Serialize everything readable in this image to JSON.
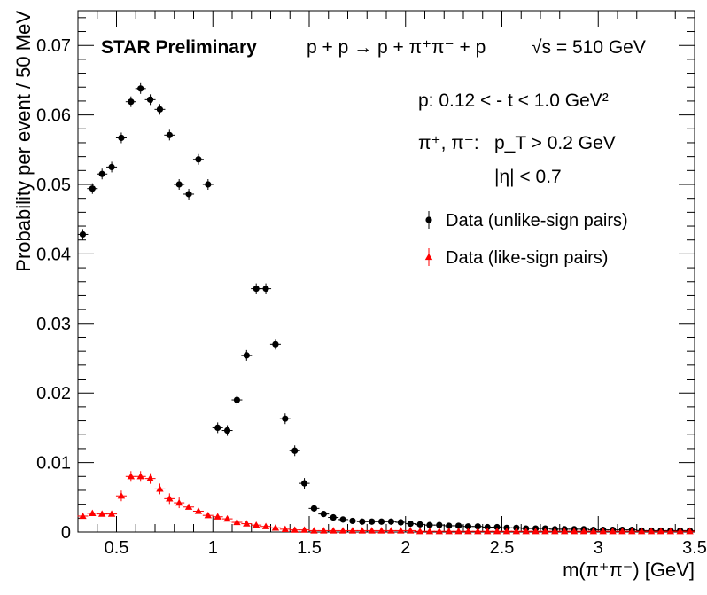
{
  "chart_data": {
    "type": "scatter",
    "title": "",
    "xlabel": "m(π⁺π⁻) [GeV]",
    "ylabel": "Probability per event / 50 MeV",
    "xlim": [
      0.3,
      3.5
    ],
    "ylim": [
      0,
      0.075
    ],
    "grid": false,
    "x_ticks": [
      0.5,
      1,
      1.5,
      2,
      2.5,
      3,
      3.5
    ],
    "x_tick_labels": [
      "0.5",
      "1",
      "1.5",
      "2",
      "2.5",
      "3",
      "3.5"
    ],
    "y_ticks": [
      0,
      0.01,
      0.02,
      0.03,
      0.04,
      0.05,
      0.06,
      0.07
    ],
    "y_tick_labels": [
      "0",
      "0.01",
      "0.02",
      "0.03",
      "0.04",
      "0.05",
      "0.06",
      "0.07"
    ],
    "annotations": {
      "experiment": "STAR Preliminary",
      "reaction": "p + p → p + π⁺π⁻ + p",
      "energy": "√s = 510 GeV",
      "proton_cut": "p:   0.12 < - t < 1.0 GeV²",
      "pion_label": "π⁺, π⁻:",
      "pt_cut": "p_T > 0.2 GeV",
      "eta_cut": "|η| < 0.7"
    },
    "legend_position": "top-right",
    "series": [
      {
        "name": "Data (unlike-sign pairs)",
        "color": "#000000",
        "marker": "circle",
        "x": [
          0.325,
          0.375,
          0.425,
          0.475,
          0.525,
          0.575,
          0.625,
          0.675,
          0.725,
          0.775,
          0.825,
          0.875,
          0.925,
          0.975,
          1.025,
          1.075,
          1.125,
          1.175,
          1.225,
          1.275,
          1.325,
          1.375,
          1.425,
          1.475,
          1.525,
          1.575,
          1.625,
          1.675,
          1.725,
          1.775,
          1.825,
          1.875,
          1.925,
          1.975,
          2.025,
          2.075,
          2.125,
          2.175,
          2.225,
          2.275,
          2.325,
          2.375,
          2.425,
          2.475,
          2.525,
          2.575,
          2.625,
          2.675,
          2.725,
          2.775,
          2.825,
          2.875,
          2.925,
          2.975,
          3.025,
          3.075,
          3.125,
          3.175,
          3.225,
          3.275,
          3.325,
          3.375,
          3.425,
          3.475
        ],
        "y": [
          0.0428,
          0.0494,
          0.0515,
          0.0525,
          0.0567,
          0.0619,
          0.0638,
          0.0622,
          0.0608,
          0.0571,
          0.05,
          0.0486,
          0.0536,
          0.05,
          0.015,
          0.0146,
          0.019,
          0.0254,
          0.035,
          0.035,
          0.027,
          0.0163,
          0.0117,
          0.007,
          0.0034,
          0.0026,
          0.0021,
          0.0018,
          0.0016,
          0.0015,
          0.0015,
          0.0015,
          0.0015,
          0.0014,
          0.0012,
          0.0011,
          0.001,
          0.001,
          0.0009,
          0.0009,
          0.0008,
          0.0008,
          0.0007,
          0.0007,
          0.0006,
          0.0006,
          0.0005,
          0.0005,
          0.0005,
          0.0004,
          0.0004,
          0.0004,
          0.0004,
          0.0003,
          0.0003,
          0.0003,
          0.0003,
          0.0003,
          0.0002,
          0.0002,
          0.0002,
          0.0002,
          0.0002,
          0.0002
        ]
      },
      {
        "name": "Data (like-sign pairs)",
        "color": "#ff0000",
        "marker": "triangle",
        "x": [
          0.325,
          0.375,
          0.425,
          0.475,
          0.525,
          0.575,
          0.625,
          0.675,
          0.725,
          0.775,
          0.825,
          0.875,
          0.925,
          0.975,
          1.025,
          1.075,
          1.125,
          1.175,
          1.225,
          1.275,
          1.325,
          1.375,
          1.425,
          1.475,
          1.525,
          1.575,
          1.625,
          1.675,
          1.725,
          1.775,
          1.825,
          1.875,
          1.925,
          1.975,
          2.025,
          2.075,
          2.125,
          2.175,
          2.225,
          2.275,
          2.325,
          2.375,
          2.425,
          2.475,
          2.525,
          2.575,
          2.625,
          2.675,
          2.725,
          2.775,
          2.825,
          2.875,
          2.925,
          2.975,
          3.025,
          3.075,
          3.125,
          3.175,
          3.225,
          3.275,
          3.325,
          3.375,
          3.425,
          3.475
        ],
        "y": [
          0.0023,
          0.0027,
          0.0026,
          0.0026,
          0.0052,
          0.008,
          0.008,
          0.0077,
          0.0062,
          0.0048,
          0.0042,
          0.0036,
          0.003,
          0.0024,
          0.0022,
          0.0019,
          0.0014,
          0.0012,
          0.001,
          0.0008,
          0.0006,
          0.0004,
          0.0003,
          0.0003,
          0.0002,
          0.0002,
          0.0002,
          0.0002,
          0.0002,
          0.0002,
          0.0002,
          0.0002,
          0.0002,
          0.0002,
          0.0002,
          0.0001,
          0.0001,
          0.0001,
          0.0001,
          0.0001,
          0.0001,
          0.0001,
          0.0001,
          0.0001,
          0.0001,
          0.0001,
          0.0001,
          0.0001,
          0.0001,
          0.0001,
          0.0001,
          0.0001,
          0.0001,
          0.0001,
          0.0001,
          0.0001,
          0.0001,
          0.0001,
          0.0001,
          0.0001,
          0.0001,
          0.0001,
          0.0001,
          0.0001
        ]
      }
    ]
  }
}
